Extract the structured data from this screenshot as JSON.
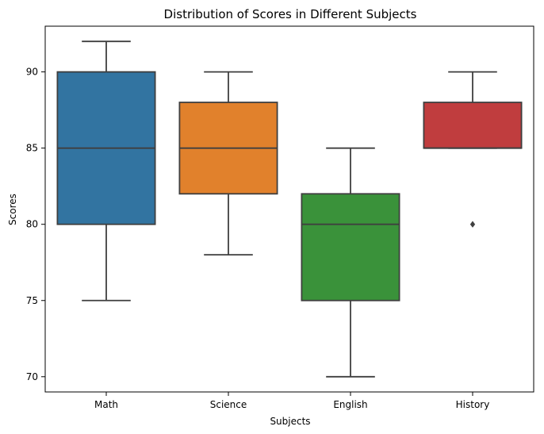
{
  "chart_data": {
    "type": "box",
    "title": "Distribution of Scores in Different Subjects",
    "xlabel": "Subjects",
    "ylabel": "Scores",
    "ylim": [
      69,
      93
    ],
    "yticks": [
      70,
      75,
      80,
      85,
      90
    ],
    "categories": [
      "Math",
      "Science",
      "English",
      "History"
    ],
    "boxes": [
      {
        "category": "Math",
        "whisker_low": 75,
        "q1": 80,
        "median": 85,
        "q3": 90,
        "whisker_high": 92,
        "outliers": [],
        "color": "#3274a1"
      },
      {
        "category": "Science",
        "whisker_low": 78,
        "q1": 82,
        "median": 85,
        "q3": 88,
        "whisker_high": 90,
        "outliers": [],
        "color": "#e1812c"
      },
      {
        "category": "English",
        "whisker_low": 70,
        "q1": 75,
        "median": 80,
        "q3": 82,
        "whisker_high": 85,
        "outliers": [],
        "color": "#3a923a"
      },
      {
        "category": "History",
        "whisker_low": 85,
        "q1": 85,
        "median": 85,
        "q3": 88,
        "whisker_high": 90,
        "outliers": [
          80
        ],
        "color": "#c03d3e"
      }
    ],
    "grid": false,
    "legend": "none",
    "line_color": "#3f3f3f"
  }
}
